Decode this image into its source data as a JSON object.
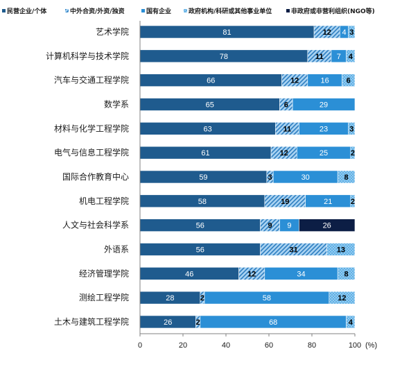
{
  "chart_data": {
    "type": "bar",
    "orientation": "horizontal",
    "stacked": true,
    "title": "",
    "xlabel": "",
    "ylabel": "",
    "x_unit": "(%)",
    "xlim": [
      0,
      100
    ],
    "xticks": [
      "0",
      "20",
      "40",
      "60",
      "80",
      "100"
    ],
    "grid": false,
    "legend_position": "top",
    "categories": [
      "艺术学院",
      "计算机科学与技术学院",
      "汽车与交通工程学院",
      "数学系",
      "材料与化学工程学院",
      "电气与信息工程学院",
      "国际合作教育中心",
      "机电工程学院",
      "人文与社会科学系",
      "外语系",
      "经济管理学院",
      "测绘工程学院",
      "土木与建筑工程学院"
    ],
    "series": [
      {
        "name": "民营企业/个体",
        "color": "#1f5b8e",
        "pattern": "solid",
        "values": [
          81,
          78,
          66,
          65,
          63,
          61,
          59,
          58,
          56,
          56,
          46,
          28,
          26
        ],
        "labels": [
          "81",
          "78",
          "66",
          "65",
          "63",
          "61",
          "59",
          "58",
          "56",
          "56",
          "46",
          "28",
          "26"
        ]
      },
      {
        "name": "中外合资/外资/独资",
        "color": "#2f7fc1",
        "pattern": "diagonal",
        "values": [
          12,
          11,
          12,
          6,
          11,
          12,
          3,
          19,
          9,
          31,
          12,
          2,
          2
        ],
        "labels": [
          "12",
          "11",
          "12",
          "6",
          "11",
          "12",
          "3",
          "19",
          "9",
          "31",
          "12",
          "2",
          "2"
        ]
      },
      {
        "name": "国有企业",
        "color": "#2b8fd6",
        "pattern": "solid",
        "values": [
          4,
          7,
          16,
          29,
          23,
          25,
          30,
          21,
          9,
          0,
          34,
          58,
          68
        ],
        "labels": [
          "4",
          "7",
          "16",
          "29",
          "23",
          "25",
          "30",
          "21",
          "9",
          "",
          "34",
          "58",
          "68"
        ]
      },
      {
        "name": "政府机构/科研或其他事业单位",
        "color": "#5fb0e6",
        "pattern": "dotted",
        "values": [
          3,
          4,
          6,
          0,
          3,
          2,
          8,
          2,
          0,
          13,
          8,
          12,
          4
        ],
        "labels": [
          "3",
          "4",
          "6",
          "",
          "3",
          "2",
          "8",
          "2",
          "",
          "13",
          "8",
          "12",
          "4"
        ]
      },
      {
        "name": "非政府或非营利组织(NGO等)",
        "color": "#0c1e45",
        "pattern": "solid",
        "values": [
          0,
          0,
          0,
          0,
          0,
          0,
          0,
          0,
          26,
          0,
          0,
          0,
          0
        ],
        "labels": [
          "",
          "",
          "",
          "",
          "",
          "",
          "",
          "",
          "26",
          "",
          "",
          "",
          ""
        ]
      }
    ]
  }
}
